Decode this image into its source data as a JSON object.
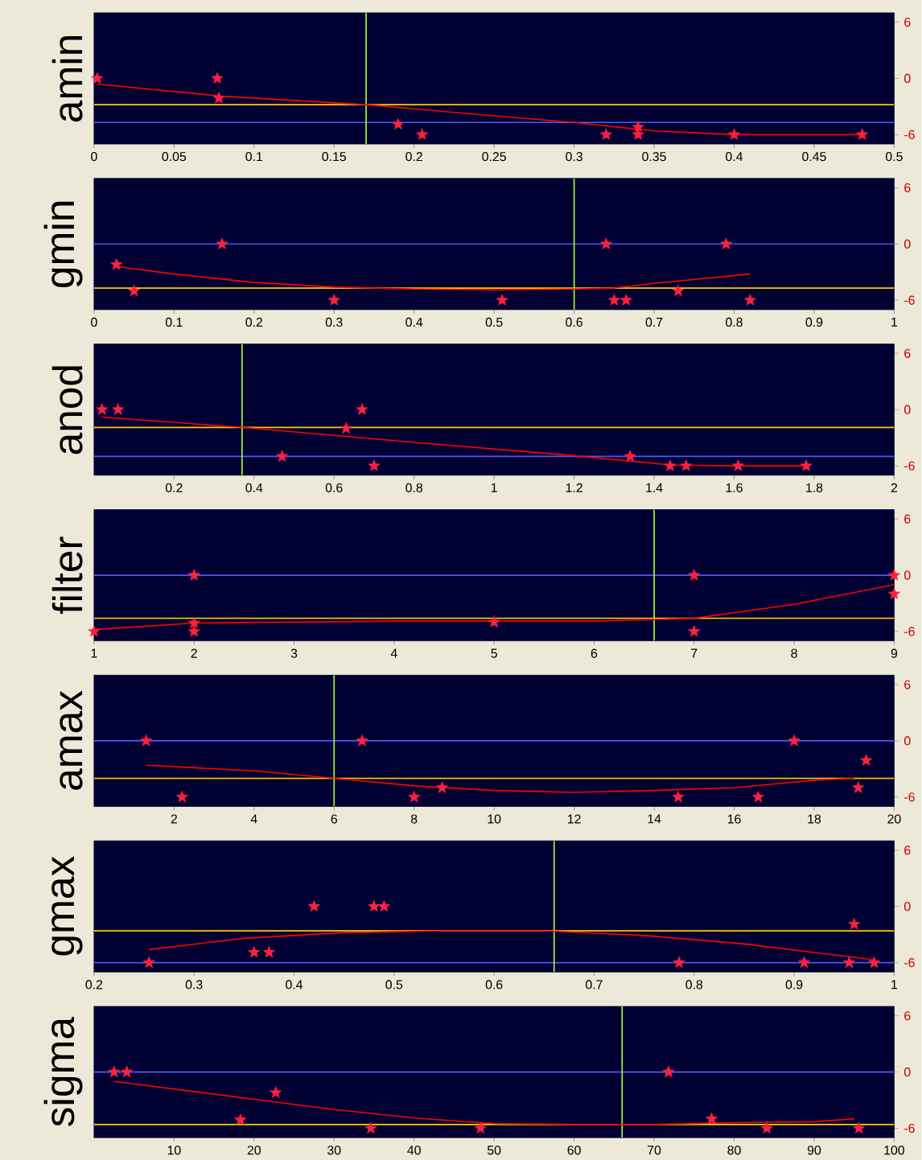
{
  "chart_data": [
    {
      "type": "scatter",
      "ylabel": "amin",
      "xlim": [
        0,
        0.5
      ],
      "xticks": [
        0,
        0.05,
        0.1,
        0.15,
        0.2,
        0.25,
        0.3,
        0.35,
        0.4,
        0.45,
        0.5
      ],
      "ylim": [
        -7,
        7
      ],
      "yticks": [
        6,
        0,
        -6
      ],
      "series": [
        {
          "type": "scatter",
          "marker": "star",
          "color": "#ff2040",
          "x": [
            0.002,
            0.077,
            0.078,
            0.19,
            0.205,
            0.32,
            0.34,
            0.34,
            0.4,
            0.48
          ],
          "values": [
            0,
            0,
            -2.1,
            -4.9,
            -6,
            -6,
            -6,
            -5.2,
            -6,
            -6
          ]
        },
        {
          "type": "line",
          "marker": "none",
          "color": "#ff0000",
          "x": [
            0.002,
            0.08,
            0.17,
            0.25,
            0.3,
            0.35,
            0.4,
            0.48
          ],
          "values": [
            -0.6,
            -1.9,
            -2.8,
            -4,
            -4.7,
            -5.6,
            -6,
            -6
          ]
        }
      ],
      "ref_lines": [
        {
          "axis": "y",
          "value": -2.8,
          "color": "#ffcc00"
        },
        {
          "axis": "y",
          "value": -4.7,
          "color": "#5555ff"
        },
        {
          "axis": "x",
          "value": 0.17,
          "color": "#99ee33"
        }
      ]
    },
    {
      "type": "scatter",
      "ylabel": "gmin",
      "xlim": [
        0,
        1
      ],
      "xticks": [
        0,
        0.1,
        0.2,
        0.3,
        0.4,
        0.5,
        0.6,
        0.7,
        0.8,
        0.9,
        1
      ],
      "ylim": [
        -7,
        7
      ],
      "yticks": [
        6,
        0,
        -6
      ],
      "series": [
        {
          "type": "scatter",
          "marker": "star",
          "color": "#ff2040",
          "x": [
            0.028,
            0.05,
            0.16,
            0.3,
            0.51,
            0.64,
            0.65,
            0.665,
            0.73,
            0.79,
            0.82
          ],
          "values": [
            -2.2,
            -5,
            0,
            -6,
            -6,
            0,
            -6,
            -6,
            -5,
            0,
            -6
          ]
        },
        {
          "type": "line",
          "marker": "none",
          "color": "#ff0000",
          "x": [
            0.028,
            0.1,
            0.2,
            0.3,
            0.4,
            0.5,
            0.6,
            0.65,
            0.7,
            0.82
          ],
          "values": [
            -2.4,
            -3.2,
            -4.1,
            -4.6,
            -4.8,
            -4.9,
            -4.8,
            -4.7,
            -4.2,
            -3.2
          ]
        }
      ],
      "ref_lines": [
        {
          "axis": "y",
          "value": -4.7,
          "color": "#ffcc00"
        },
        {
          "axis": "y",
          "value": 0,
          "color": "#5555ff"
        },
        {
          "axis": "x",
          "value": 0.6,
          "color": "#99ee33"
        }
      ]
    },
    {
      "type": "scatter",
      "ylabel": "anod",
      "xlim": [
        0,
        2
      ],
      "xticks": [
        0.2,
        0.4,
        0.6,
        0.8,
        1,
        1.2,
        1.4,
        1.6,
        1.8,
        2
      ],
      "ylim": [
        -7,
        7
      ],
      "yticks": [
        6,
        0,
        -6
      ],
      "series": [
        {
          "type": "scatter",
          "marker": "star",
          "color": "#ff2040",
          "x": [
            0.02,
            0.06,
            0.47,
            0.63,
            0.67,
            0.7,
            1.34,
            1.44,
            1.48,
            1.61,
            1.78
          ],
          "values": [
            0,
            0,
            -5,
            -2,
            0,
            -6,
            -5,
            -6,
            -6,
            -6,
            -6
          ]
        },
        {
          "type": "line",
          "marker": "none",
          "color": "#ff0000",
          "x": [
            0.02,
            0.37,
            0.8,
            1.17,
            1.44,
            1.6,
            1.78
          ],
          "values": [
            -0.8,
            -1.9,
            -3.5,
            -4.8,
            -5.9,
            -6,
            -6
          ]
        }
      ],
      "ref_lines": [
        {
          "axis": "y",
          "value": -1.9,
          "color": "#ffcc00"
        },
        {
          "axis": "y",
          "value": -5,
          "color": "#5555ff"
        },
        {
          "axis": "x",
          "value": 0.37,
          "color": "#99ee33"
        }
      ]
    },
    {
      "type": "scatter",
      "ylabel": "filter",
      "xlim": [
        1,
        9
      ],
      "xticks": [
        1,
        2,
        3,
        4,
        5,
        6,
        7,
        8,
        9
      ],
      "ylim": [
        -7,
        7
      ],
      "yticks": [
        6,
        0,
        -6
      ],
      "series": [
        {
          "type": "scatter",
          "marker": "star",
          "color": "#ff2040",
          "x": [
            1,
            2,
            2,
            2,
            5,
            7,
            7,
            9,
            9
          ],
          "values": [
            -6,
            0,
            -5.1,
            -6,
            -5,
            0,
            -6,
            0,
            -2
          ]
        },
        {
          "type": "line",
          "marker": "none",
          "color": "#ff0000",
          "x": [
            1,
            2,
            4,
            6,
            7,
            8,
            9
          ],
          "values": [
            -5.8,
            -5.1,
            -4.9,
            -4.9,
            -4.6,
            -3.1,
            -1
          ]
        }
      ],
      "ref_lines": [
        {
          "axis": "y",
          "value": -4.6,
          "color": "#ffcc00"
        },
        {
          "axis": "y",
          "value": 0,
          "color": "#5555ff"
        },
        {
          "axis": "x",
          "value": 6.6,
          "color": "#99ee33"
        }
      ]
    },
    {
      "type": "scatter",
      "ylabel": "amax",
      "xlim": [
        0,
        20
      ],
      "xticks": [
        2,
        4,
        6,
        8,
        10,
        12,
        14,
        16,
        18,
        20
      ],
      "ylim": [
        -7,
        7
      ],
      "yticks": [
        6,
        0,
        -6
      ],
      "series": [
        {
          "type": "scatter",
          "marker": "star",
          "color": "#ff2040",
          "x": [
            1.3,
            2.2,
            6.7,
            8,
            8.7,
            14.6,
            16.6,
            17.5,
            19.1,
            19.3
          ],
          "values": [
            0,
            -6,
            0,
            -6,
            -5,
            -6,
            -6,
            0,
            -5,
            -2.1
          ]
        },
        {
          "type": "line",
          "marker": "none",
          "color": "#ff0000",
          "x": [
            1.3,
            4,
            6,
            8,
            10,
            12,
            14,
            16,
            18,
            19
          ],
          "values": [
            -2.6,
            -3.2,
            -4,
            -4.8,
            -5.3,
            -5.5,
            -5.3,
            -5,
            -4.2,
            -4
          ]
        }
      ],
      "ref_lines": [
        {
          "axis": "y",
          "value": -4,
          "color": "#ffcc00"
        },
        {
          "axis": "y",
          "value": 0,
          "color": "#5555ff"
        },
        {
          "axis": "x",
          "value": 6,
          "color": "#99ee33"
        }
      ]
    },
    {
      "type": "scatter",
      "ylabel": "gmax",
      "xlim": [
        0.2,
        1
      ],
      "xticks": [
        0.2,
        0.3,
        0.4,
        0.5,
        0.6,
        0.7,
        0.8,
        0.9,
        1
      ],
      "ylim": [
        -7,
        7
      ],
      "yticks": [
        6,
        0,
        -6
      ],
      "series": [
        {
          "type": "scatter",
          "marker": "star",
          "color": "#ff2040",
          "x": [
            0.255,
            0.36,
            0.375,
            0.42,
            0.48,
            0.49,
            0.785,
            0.91,
            0.955,
            0.96,
            0.98
          ],
          "values": [
            -6,
            -4.9,
            -4.9,
            0,
            0,
            0,
            -6,
            -6,
            -6,
            -1.9,
            -6
          ]
        },
        {
          "type": "line",
          "marker": "none",
          "color": "#ff0000",
          "x": [
            0.255,
            0.35,
            0.45,
            0.55,
            0.65,
            0.75,
            0.85,
            0.95,
            0.98
          ],
          "values": [
            -4.6,
            -3.4,
            -2.8,
            -2.6,
            -2.6,
            -3.1,
            -4,
            -5.3,
            -5.7
          ]
        }
      ],
      "ref_lines": [
        {
          "axis": "y",
          "value": -2.6,
          "color": "#ffcc00"
        },
        {
          "axis": "y",
          "value": -6,
          "color": "#5555ff"
        },
        {
          "axis": "x",
          "value": 0.66,
          "color": "#99ee33"
        }
      ]
    },
    {
      "type": "scatter",
      "ylabel": "sigma",
      "xlim": [
        0,
        100
      ],
      "xticks": [
        10,
        20,
        30,
        40,
        50,
        60,
        70,
        80,
        90,
        100
      ],
      "ylim": [
        -7,
        7
      ],
      "yticks": [
        6,
        0,
        -6
      ],
      "series": [
        {
          "type": "scatter",
          "marker": "star",
          "color": "#ff2040",
          "x": [
            2.5,
            4.1,
            18.3,
            22.7,
            34.6,
            48.3,
            71.8,
            77.2,
            84.1,
            95.6
          ],
          "values": [
            0,
            0,
            -5.1,
            -2.2,
            -6,
            -6,
            0,
            -5,
            -6,
            -6
          ]
        },
        {
          "type": "line",
          "marker": "none",
          "color": "#ff0000",
          "x": [
            2.5,
            20,
            30,
            40,
            50,
            60,
            70,
            80,
            90,
            95
          ],
          "values": [
            -1,
            -2.9,
            -4,
            -4.9,
            -5.5,
            -5.6,
            -5.6,
            -5.4,
            -5.3,
            -5
          ]
        }
      ],
      "ref_lines": [
        {
          "axis": "y",
          "value": -5.6,
          "color": "#ffcc00"
        },
        {
          "axis": "y",
          "value": 0,
          "color": "#5555ff"
        },
        {
          "axis": "x",
          "value": 66,
          "color": "#99ee33"
        }
      ]
    }
  ]
}
